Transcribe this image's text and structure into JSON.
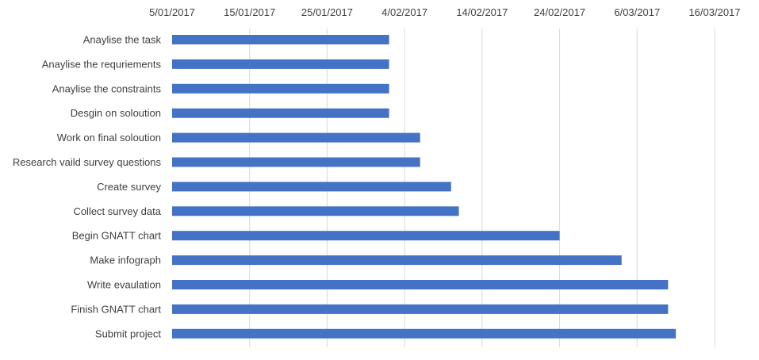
{
  "chart_data": {
    "type": "bar",
    "orientation": "horizontal",
    "axis_position": "top",
    "grid": true,
    "xlim": [
      "2017-01-05",
      "2017-03-16"
    ],
    "x_ticks": [
      "5/01/2017",
      "15/01/2017",
      "25/01/2017",
      "4/02/2017",
      "14/02/2017",
      "24/02/2017",
      "6/03/2017",
      "16/03/2017"
    ],
    "categories": [
      "Anaylise the task",
      "Anaylise the requriements",
      "Anaylise the constraints",
      "Desgin on soloution",
      "Work on final soloution",
      "Research vaild survey questions",
      "Create survey",
      "Collect survey data",
      "Begin GNATT chart",
      "Make infograph",
      "Write evaulation",
      "Finish GNATT chart",
      "Submit project"
    ],
    "values": [
      "2017-02-02",
      "2017-02-02",
      "2017-02-02",
      "2017-02-02",
      "2017-02-06",
      "2017-02-06",
      "2017-02-10",
      "2017-02-11",
      "2017-02-24",
      "2017-03-04",
      "2017-03-10",
      "2017-03-10",
      "2017-03-11"
    ],
    "color": "#4472c4"
  }
}
